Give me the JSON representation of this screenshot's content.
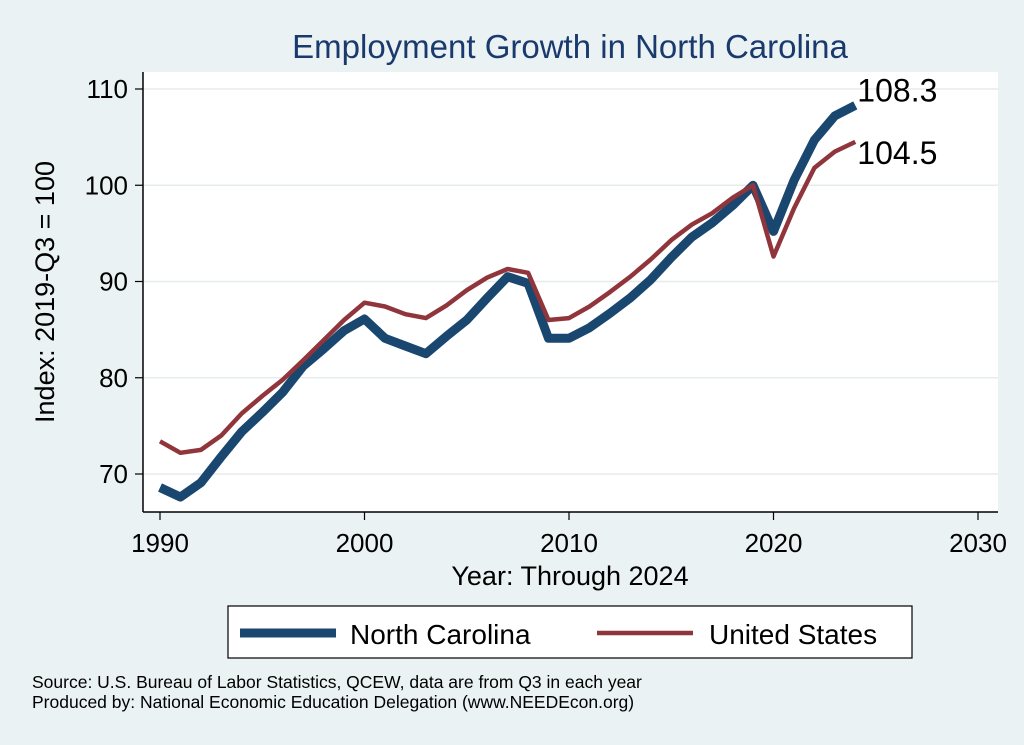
{
  "chart_data": {
    "type": "line",
    "title": "Employment Growth in North Carolina",
    "xlabel": "Year: Through 2024",
    "ylabel": "Index: 2019-Q3 = 100",
    "xlim": [
      1990,
      2030
    ],
    "ylim": [
      68,
      110
    ],
    "xticks": [
      1990,
      2000,
      2010,
      2020,
      2030
    ],
    "yticks": [
      70,
      80,
      90,
      100,
      110
    ],
    "grid": true,
    "legend_position": "bottom",
    "x": [
      1990,
      1991,
      1992,
      1993,
      1994,
      1995,
      1996,
      1997,
      1998,
      1999,
      2000,
      2001,
      2002,
      2003,
      2004,
      2005,
      2006,
      2007,
      2008,
      2009,
      2010,
      2011,
      2012,
      2013,
      2014,
      2015,
      2016,
      2017,
      2018,
      2019,
      2020,
      2021,
      2022,
      2023,
      2024
    ],
    "series": [
      {
        "name": "North Carolina",
        "color": "#1a476f",
        "values": [
          68.6,
          67.6,
          69.1,
          71.8,
          74.4,
          76.4,
          78.5,
          81.2,
          83.0,
          84.9,
          86.1,
          84.1,
          83.3,
          82.5,
          84.3,
          86.0,
          88.3,
          90.5,
          89.8,
          84.1,
          84.1,
          85.2,
          86.7,
          88.3,
          90.2,
          92.5,
          94.6,
          96.1,
          97.9,
          100.0,
          95.2,
          100.5,
          104.7,
          107.2,
          108.3
        ],
        "end_label": "108.3"
      },
      {
        "name": "United States",
        "color": "#90353b",
        "values": [
          73.4,
          72.2,
          72.5,
          74.0,
          76.3,
          78.1,
          79.8,
          81.8,
          83.9,
          86.0,
          87.8,
          87.4,
          86.6,
          86.2,
          87.5,
          89.1,
          90.4,
          91.3,
          90.9,
          86.0,
          86.2,
          87.4,
          88.9,
          90.5,
          92.3,
          94.3,
          95.9,
          97.1,
          98.7,
          100.0,
          92.6,
          97.6,
          101.8,
          103.5,
          104.5
        ],
        "end_label": "104.5"
      }
    ]
  },
  "source_lines": [
    "Source: U.S. Bureau of Labor Statistics, QCEW, data are from Q3 in each year",
    "Produced by: National Economic Education Delegation (www.NEEDEcon.org)"
  ]
}
